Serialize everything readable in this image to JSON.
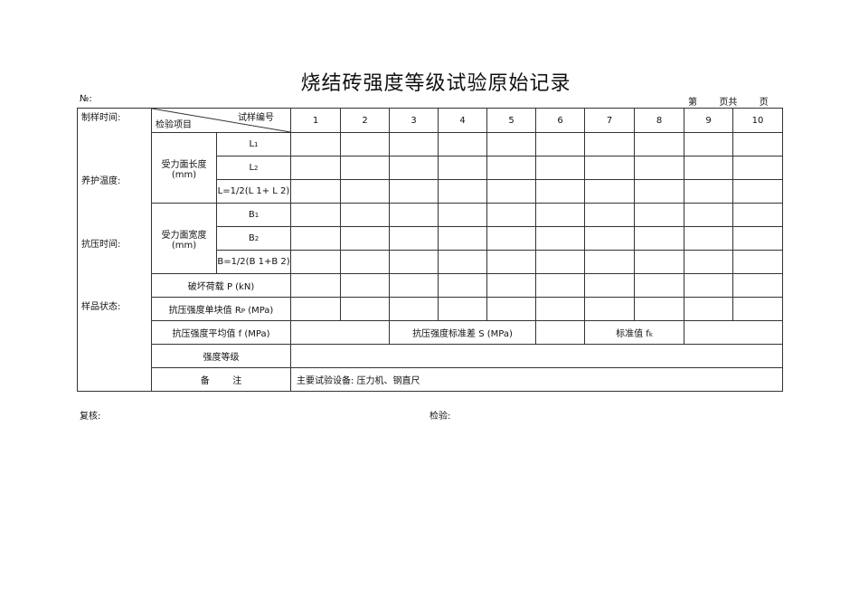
{
  "title": "烧结砖强度等级试验原始记录",
  "number_label": "№:",
  "page_info": {
    "di": "第",
    "ye_gong": "页共",
    "ye": "页"
  },
  "left_labels": [
    "制样时间:",
    "养护温度:",
    "抗压时间:",
    "样品状态:"
  ],
  "header": {
    "sample_no_label": "试样编号",
    "item_label": "检验项目",
    "columns": [
      "1",
      "2",
      "3",
      "4",
      "5",
      "6",
      "7",
      "8",
      "9",
      "10"
    ]
  },
  "length": {
    "group": "受力面长度",
    "unit": "(mm)",
    "l1": "L",
    "l1_sub": "1",
    "l2": "L",
    "l2_sub": "2",
    "avg": "L=1/2(L 1+ L 2)"
  },
  "width": {
    "group": "受力面宽度",
    "unit": "(mm)",
    "b1": "B",
    "b1_sub": "1",
    "b2": "B",
    "b2_sub": "2",
    "avg": "B=1/2(B 1+B 2)"
  },
  "load": "破坏荷载  P   (kN)",
  "single_strength": "抗压强度单块值   R",
  "single_strength_sub": "P",
  "single_strength_unit": " (MPa)",
  "avg_strength": "抗压强度平均值   f    (MPa)",
  "std_dev": "抗压强度标准差    S    (MPa)",
  "standard_value": "标准值  f",
  "standard_value_sub": "k",
  "grade": "强度等级",
  "remark_label": "备        注",
  "remark_value": "主要试验设备: 压力机、钢直尺",
  "footer": {
    "review": "复核:",
    "inspect": "检验:"
  }
}
